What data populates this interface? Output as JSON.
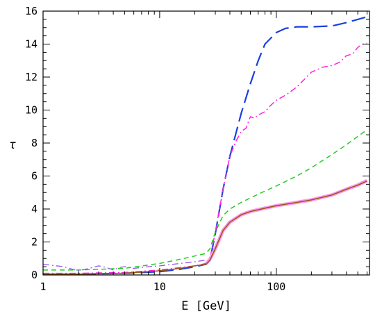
{
  "chart_data": {
    "type": "line",
    "xlabel": "E [GeV]",
    "ylabel": "τ",
    "xscale": "log",
    "xlim": [
      1,
      630
    ],
    "ylim": [
      0,
      16
    ],
    "grid": false,
    "x_ticks": [
      {
        "value": 1,
        "label": "1"
      },
      {
        "value": 10,
        "label": "10"
      },
      {
        "value": 100,
        "label": "100"
      }
    ],
    "y_ticks": [
      {
        "value": 0,
        "label": "0"
      },
      {
        "value": 2,
        "label": "2"
      },
      {
        "value": 4,
        "label": "4"
      },
      {
        "value": 6,
        "label": "6"
      },
      {
        "value": 8,
        "label": "8"
      },
      {
        "value": 10,
        "label": "10"
      },
      {
        "value": 12,
        "label": "12"
      },
      {
        "value": 14,
        "label": "14"
      },
      {
        "value": 16,
        "label": "16"
      }
    ],
    "series": [
      {
        "color": "#1a3fe0",
        "dash": "long-dash",
        "width": 2.2,
        "x": [
          1,
          2,
          5,
          10,
          15,
          20,
          25,
          27,
          30,
          35,
          40,
          50,
          60,
          70,
          80,
          100,
          120,
          150,
          200,
          300,
          400,
          500,
          600
        ],
        "y": [
          0.05,
          0.05,
          0.1,
          0.2,
          0.35,
          0.5,
          0.65,
          0.9,
          2.5,
          5.2,
          7.2,
          9.8,
          11.6,
          13.0,
          14.0,
          14.7,
          14.95,
          15.05,
          15.05,
          15.1,
          15.3,
          15.5,
          15.65
        ]
      },
      {
        "color": "#ff22dd",
        "dash": "dash-dot",
        "width": 1.5,
        "x": [
          1,
          2,
          5,
          10,
          15,
          20,
          25,
          27,
          30,
          35,
          40,
          45,
          50,
          55,
          60,
          65,
          70,
          80,
          90,
          100,
          120,
          150,
          200,
          250,
          300,
          350,
          400,
          450,
          500,
          550,
          600
        ],
        "y": [
          0.1,
          0.1,
          0.15,
          0.3,
          0.45,
          0.55,
          0.7,
          1.0,
          2.6,
          5.2,
          7.2,
          8.1,
          8.7,
          8.9,
          9.6,
          9.5,
          9.7,
          9.9,
          10.3,
          10.6,
          10.9,
          11.4,
          12.3,
          12.6,
          12.7,
          12.9,
          13.3,
          13.4,
          13.8,
          14.0,
          14.05
        ]
      },
      {
        "color": "#22cc22",
        "dash": "short-dash",
        "width": 1.5,
        "x": [
          1,
          2,
          5,
          10,
          15,
          20,
          25,
          27,
          30,
          35,
          40,
          50,
          70,
          100,
          150,
          200,
          300,
          400,
          500,
          600
        ],
        "y": [
          0.3,
          0.3,
          0.4,
          0.7,
          0.95,
          1.15,
          1.3,
          1.6,
          2.6,
          3.6,
          4.0,
          4.4,
          4.9,
          5.4,
          6.0,
          6.5,
          7.3,
          7.9,
          8.4,
          8.8
        ]
      },
      {
        "color": "#9055ee",
        "dash": "dash-dot",
        "width": 1.3,
        "x": [
          1,
          1.5,
          2,
          2.5,
          3,
          3.5,
          4,
          4.5,
          5,
          6,
          7,
          8,
          10,
          15,
          20,
          25
        ],
        "y": [
          0.65,
          0.5,
          0.25,
          0.4,
          0.55,
          0.45,
          0.3,
          0.45,
          0.5,
          0.4,
          0.45,
          0.5,
          0.55,
          0.7,
          0.8,
          0.9
        ]
      },
      {
        "color": "#ff99ee",
        "dash": "solid",
        "width": 5,
        "x": [
          25,
          27,
          30,
          35,
          40,
          50,
          60,
          80,
          100,
          150,
          200,
          300,
          400,
          500,
          600
        ],
        "y": [
          0.68,
          0.95,
          1.6,
          2.7,
          3.2,
          3.65,
          3.85,
          4.05,
          4.2,
          4.4,
          4.55,
          4.85,
          5.2,
          5.45,
          5.72
        ]
      },
      {
        "color": "#9a5a1a",
        "dash": "solid",
        "width": 1.6,
        "x": [
          1,
          2,
          5,
          10,
          15,
          20,
          25,
          27,
          30,
          35,
          40,
          50,
          60,
          80,
          100,
          150,
          200,
          300,
          400,
          500,
          600
        ],
        "y": [
          0.05,
          0.05,
          0.1,
          0.25,
          0.4,
          0.55,
          0.65,
          0.9,
          1.6,
          2.7,
          3.2,
          3.65,
          3.85,
          4.05,
          4.2,
          4.4,
          4.55,
          4.85,
          5.2,
          5.45,
          5.7
        ]
      }
    ]
  }
}
